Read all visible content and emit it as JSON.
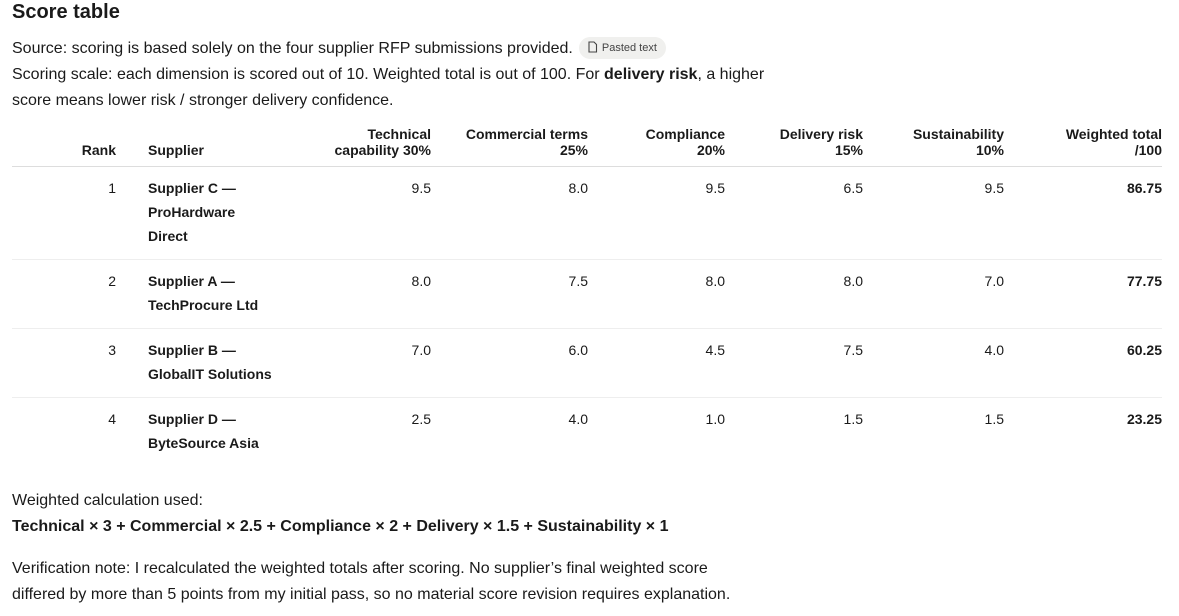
{
  "header": {
    "title": "Score table"
  },
  "intro": {
    "source": "Source: scoring is based solely on the four supplier RFP submissions provided.",
    "attachment": "Pasted text",
    "scale_before": "Scoring scale: each dimension is scored out of 10. Weighted total is out of 100. For ",
    "scale_bold": "delivery risk",
    "scale_after": ", a higher score means lower risk / stronger delivery confidence."
  },
  "table": {
    "columns": [
      "Rank",
      "Supplier",
      "Technical capability 30%",
      "Commercial terms 25%",
      "Compliance 20%",
      "Delivery risk 15%",
      "Sustainability 10%",
      "Weighted total /100"
    ],
    "rows": [
      [
        "1",
        "Supplier C — ProHardware Direct",
        "9.5",
        "8.0",
        "9.5",
        "6.5",
        "9.5",
        "86.75"
      ],
      [
        "2",
        "Supplier A — TechProcure Ltd",
        "8.0",
        "7.5",
        "8.0",
        "8.0",
        "7.0",
        "77.75"
      ],
      [
        "3",
        "Supplier B — GlobalIT Solutions",
        "7.0",
        "6.0",
        "4.5",
        "7.5",
        "4.0",
        "60.25"
      ],
      [
        "4",
        "Supplier D — ByteSource Asia",
        "2.5",
        "4.0",
        "1.0",
        "1.5",
        "1.5",
        "23.25"
      ]
    ]
  },
  "calculation": {
    "label": "Weighted calculation used:",
    "formula": "Technical × 3 + Commercial × 2.5 + Compliance × 2 + Delivery × 1.5 + Sustainability × 1"
  },
  "verification": "Verification note: I recalculated the weighted totals after scoring. No supplier’s final weighted score differed by more than 5 points from my initial pass, so no material score revision requires explanation."
}
